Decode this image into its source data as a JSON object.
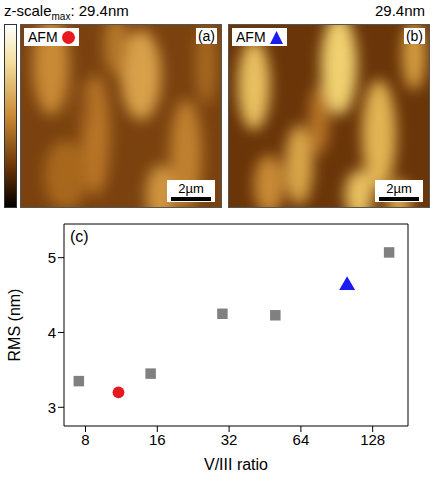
{
  "header": {
    "text": "z-scale",
    "subscript": "max",
    "suffix": ":"
  },
  "images": [
    {
      "panel": "(a)",
      "label": "AFM",
      "marker": "circle",
      "color": "#e8191e",
      "z_scale_max": "29.4nm",
      "scale_bar": "2µm"
    },
    {
      "panel": "(b)",
      "label": "AFM",
      "marker": "triangle",
      "color": "#1c1cf0",
      "z_scale_max": "29.4nm",
      "scale_bar": "2µm"
    }
  ],
  "chart_data": {
    "type": "scatter",
    "title": "(c)",
    "x_label": "V/III ratio",
    "y_label": "RMS (nm)",
    "log": "x",
    "xlim": [
      6.5,
      180
    ],
    "xticks": [
      8,
      16,
      32,
      64,
      128
    ],
    "ylim": [
      2.75,
      5.45
    ],
    "yticks": [
      3,
      4,
      5
    ],
    "grid": false,
    "series": [
      {
        "color": "#808080",
        "marker": "square",
        "x": [
          7.5,
          15,
          30,
          50,
          150
        ],
        "values": [
          3.35,
          3.45,
          4.25,
          4.23,
          5.07
        ]
      },
      {
        "color": "#e8191e",
        "marker": "circle",
        "x": [
          11
        ],
        "values": [
          3.2
        ]
      },
      {
        "color": "#1c1cf0",
        "marker": "triangle",
        "x": [
          100
        ],
        "values": [
          4.63
        ]
      }
    ]
  }
}
